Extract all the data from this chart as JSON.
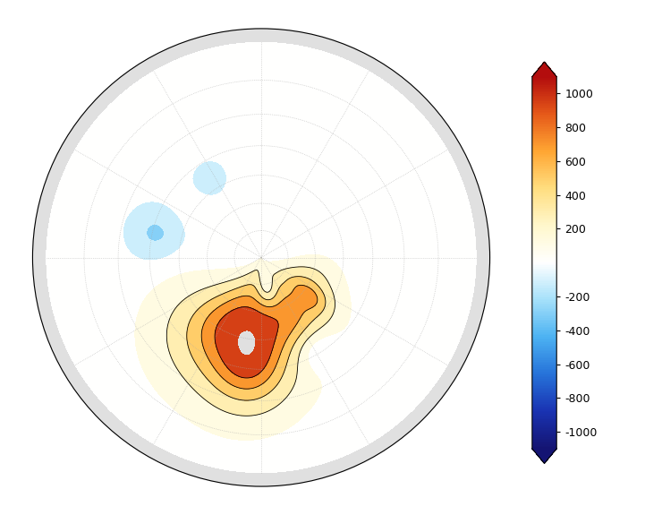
{
  "figsize": [
    7.21,
    5.75
  ],
  "dpi": 100,
  "background_color": "#e0e0e0",
  "fig_bg_color": "white",
  "coastline_color": "black",
  "coastline_linewidth": 0.5,
  "gridline_color": "#aaaaaa",
  "colorbar_ticks": [
    -1000,
    -800,
    -600,
    -400,
    -200,
    200,
    400,
    600,
    800,
    1000
  ],
  "colorbar_tick_labels": [
    "-1000",
    "-800",
    "-600",
    "-400",
    "-200",
    "200",
    "400",
    "600",
    "800",
    "1000"
  ],
  "vmin": -1100,
  "vmax": 1100,
  "blobs": [
    {
      "clat": 62,
      "clon": -18,
      "amp": 950,
      "slat": 13,
      "slon": 25
    },
    {
      "clat": 68,
      "clon": 28,
      "amp": 520,
      "slat": 9,
      "slon": 20
    },
    {
      "clat": 50,
      "clon": -6,
      "amp": 380,
      "slat": 9,
      "slon": 11
    },
    {
      "clat": 72,
      "clon": 60,
      "amp": 320,
      "slat": 7,
      "slon": 17
    },
    {
      "clat": 66,
      "clon": 52,
      "amp": 230,
      "slat": 5,
      "slon": 7
    },
    {
      "clat": 78,
      "clon": 10,
      "amp": -290,
      "slat": 5,
      "slon": 11
    },
    {
      "clat": 51,
      "clon": -103,
      "amp": -230,
      "slat": 6,
      "slon": 9
    },
    {
      "clat": 52,
      "clon": 30,
      "amp": -220,
      "slat": 5,
      "slon": 9
    },
    {
      "clat": 56,
      "clon": -147,
      "amp": -150,
      "slat": 4,
      "slon": 7
    }
  ]
}
